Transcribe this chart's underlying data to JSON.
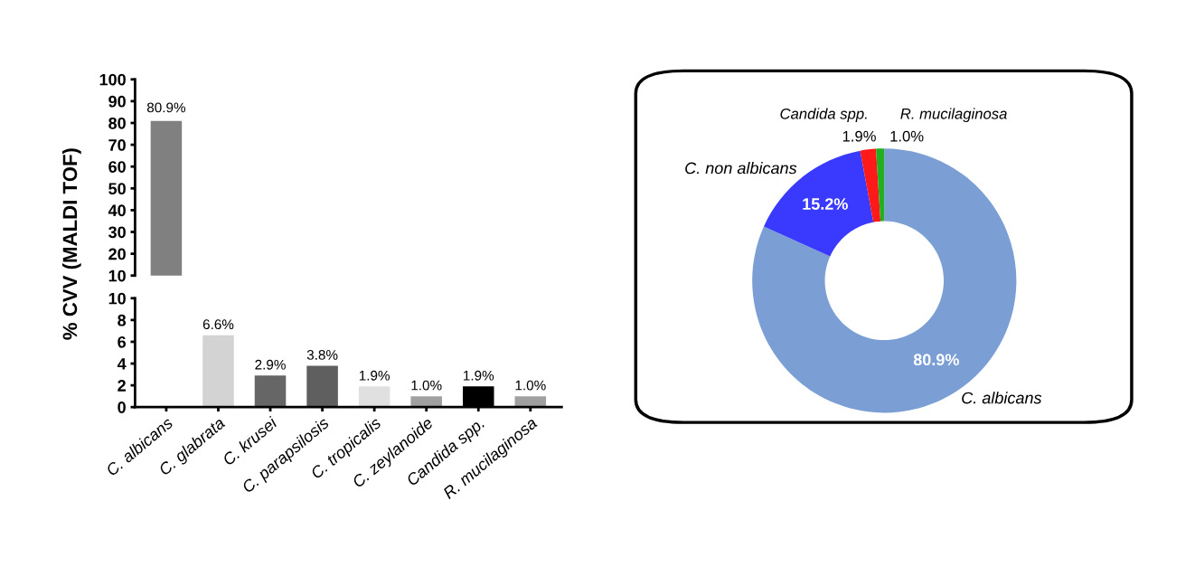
{
  "chart_data": [
    {
      "type": "bar",
      "ylabel": "% CVV (MALDI TOF)",
      "categories": [
        null
      ],
      "values": [
        80.9
      ],
      "colors": [
        "#808080"
      ],
      "value_labels": [
        "80.9%"
      ],
      "ylim": [
        10,
        100
      ],
      "yticks": [
        10,
        20,
        30,
        40,
        50,
        60,
        70,
        80,
        90,
        100
      ],
      "tick_labels": "y",
      "grid": false
    },
    {
      "type": "bar",
      "categories": [
        "C. albicans",
        "C. glabrata",
        "C. krusei",
        "C. parapsilosis",
        "C. tropicalis",
        "C. zeylanoide",
        "Candida spp.",
        "R. mucilaginosa"
      ],
      "values": [
        null,
        6.6,
        2.9,
        3.8,
        1.9,
        1.0,
        1.9,
        1.0
      ],
      "colors": [
        "#808080",
        "#d3d3d3",
        "#666666",
        "#5f5f5f",
        "#e0e0e0",
        "#a0a0a0",
        "#000000",
        "#a0a0a0"
      ],
      "value_labels": [
        null,
        "6.6%",
        "2.9%",
        "3.8%",
        "1.9%",
        "1.0%",
        "1.9%",
        "1.0%"
      ],
      "ylim": [
        0,
        10
      ],
      "yticks": [
        0,
        2,
        4,
        6,
        8,
        10
      ],
      "grid": false
    },
    {
      "type": "donut",
      "categories": [
        "C. albicans",
        "C. non albicans",
        "Candida spp.",
        "R. mucilaginosa"
      ],
      "values": [
        80.9,
        15.2,
        1.9,
        1.0
      ],
      "colors": [
        "#7b9fd4",
        "#3a3aff",
        "#ff1a1a",
        "#22b022"
      ],
      "value_labels": [
        "80.9%",
        "15.2%",
        "1.9%",
        "1.0%"
      ]
    }
  ]
}
